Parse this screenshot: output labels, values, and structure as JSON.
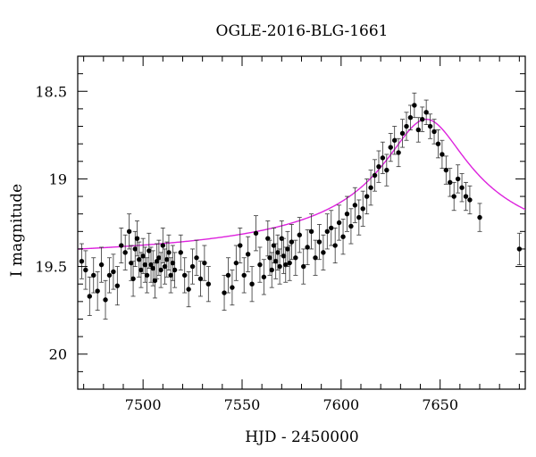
{
  "chart_data": {
    "type": "scatter",
    "title": "OGLE-2016-BLG-1661",
    "xlabel": "HJD - 2450000",
    "ylabel": "I magnitude",
    "xlim": [
      7467,
      7693
    ],
    "ylim": [
      18.3,
      20.2
    ],
    "y_inverted": true,
    "x_ticks": [
      7500,
      7550,
      7600,
      7650
    ],
    "y_ticks": [
      18.5,
      19,
      19.5,
      20
    ],
    "grid": false,
    "legend": "none",
    "colors": {
      "points": "#000000",
      "model": "#dd22dd"
    },
    "series": [
      {
        "kind": "points_with_errorbars",
        "points": [
          [
            7469,
            19.47,
            0.1
          ],
          [
            7471,
            19.52,
            0.11
          ],
          [
            7473,
            19.67,
            0.11
          ],
          [
            7475,
            19.55,
            0.1
          ],
          [
            7477,
            19.64,
            0.11
          ],
          [
            7479,
            19.49,
            0.1
          ],
          [
            7481,
            19.69,
            0.11
          ],
          [
            7483,
            19.55,
            0.1
          ],
          [
            7485,
            19.53,
            0.1
          ],
          [
            7487,
            19.61,
            0.11
          ],
          [
            7489,
            19.38,
            0.1
          ],
          [
            7491,
            19.42,
            0.1
          ],
          [
            7493,
            19.3,
            0.1
          ],
          [
            7494,
            19.48,
            0.1
          ],
          [
            7495,
            19.57,
            0.1
          ],
          [
            7496,
            19.4,
            0.1
          ],
          [
            7497,
            19.34,
            0.1
          ],
          [
            7498,
            19.46,
            0.1
          ],
          [
            7499,
            19.52,
            0.1
          ],
          [
            7500,
            19.44,
            0.1
          ],
          [
            7501,
            19.49,
            0.1
          ],
          [
            7502,
            19.55,
            0.1
          ],
          [
            7503,
            19.41,
            0.1
          ],
          [
            7504,
            19.49,
            0.1
          ],
          [
            7505,
            19.51,
            0.1
          ],
          [
            7506,
            19.58,
            0.1
          ],
          [
            7507,
            19.47,
            0.1
          ],
          [
            7508,
            19.45,
            0.1
          ],
          [
            7509,
            19.52,
            0.1
          ],
          [
            7510,
            19.38,
            0.1
          ],
          [
            7511,
            19.5,
            0.1
          ],
          [
            7512,
            19.46,
            0.1
          ],
          [
            7513,
            19.42,
            0.1
          ],
          [
            7514,
            19.55,
            0.1
          ],
          [
            7515,
            19.48,
            0.1
          ],
          [
            7516,
            19.52,
            0.1
          ],
          [
            7519,
            19.42,
            0.1
          ],
          [
            7521,
            19.55,
            0.1
          ],
          [
            7523,
            19.63,
            0.1
          ],
          [
            7525,
            19.5,
            0.1
          ],
          [
            7527,
            19.45,
            0.1
          ],
          [
            7529,
            19.57,
            0.1
          ],
          [
            7531,
            19.48,
            0.1
          ],
          [
            7533,
            19.6,
            0.1
          ],
          [
            7541,
            19.65,
            0.1
          ],
          [
            7543,
            19.55,
            0.1
          ],
          [
            7545,
            19.62,
            0.1
          ],
          [
            7547,
            19.48,
            0.1
          ],
          [
            7549,
            19.38,
            0.1
          ],
          [
            7551,
            19.55,
            0.1
          ],
          [
            7553,
            19.43,
            0.1
          ],
          [
            7555,
            19.6,
            0.1
          ],
          [
            7557,
            19.31,
            0.1
          ],
          [
            7559,
            19.49,
            0.1
          ],
          [
            7561,
            19.56,
            0.1
          ],
          [
            7563,
            19.34,
            0.1
          ],
          [
            7564,
            19.45,
            0.1
          ],
          [
            7565,
            19.52,
            0.1
          ],
          [
            7566,
            19.38,
            0.1
          ],
          [
            7567,
            19.47,
            0.1
          ],
          [
            7568,
            19.42,
            0.1
          ],
          [
            7569,
            19.5,
            0.1
          ],
          [
            7570,
            19.34,
            0.1
          ],
          [
            7571,
            19.44,
            0.1
          ],
          [
            7572,
            19.49,
            0.1
          ],
          [
            7573,
            19.4,
            0.1
          ],
          [
            7574,
            19.48,
            0.1
          ],
          [
            7575,
            19.36,
            0.1
          ],
          [
            7577,
            19.45,
            0.1
          ],
          [
            7579,
            19.32,
            0.1
          ],
          [
            7581,
            19.5,
            0.1
          ],
          [
            7583,
            19.39,
            0.1
          ],
          [
            7585,
            19.3,
            0.1
          ],
          [
            7587,
            19.45,
            0.1
          ],
          [
            7589,
            19.36,
            0.1
          ],
          [
            7591,
            19.42,
            0.1
          ],
          [
            7593,
            19.3,
            0.1
          ],
          [
            7595,
            19.28,
            0.1
          ],
          [
            7597,
            19.38,
            0.1
          ],
          [
            7599,
            19.25,
            0.1
          ],
          [
            7601,
            19.33,
            0.1
          ],
          [
            7603,
            19.2,
            0.1
          ],
          [
            7605,
            19.27,
            0.1
          ],
          [
            7607,
            19.15,
            0.1
          ],
          [
            7609,
            19.22,
            0.1
          ],
          [
            7611,
            19.17,
            0.1
          ],
          [
            7613,
            19.1,
            0.1
          ],
          [
            7615,
            19.05,
            0.1
          ],
          [
            7617,
            18.98,
            0.09
          ],
          [
            7619,
            18.93,
            0.09
          ],
          [
            7621,
            18.88,
            0.09
          ],
          [
            7623,
            18.95,
            0.09
          ],
          [
            7625,
            18.82,
            0.08
          ],
          [
            7627,
            18.78,
            0.08
          ],
          [
            7629,
            18.85,
            0.08
          ],
          [
            7631,
            18.74,
            0.08
          ],
          [
            7633,
            18.7,
            0.08
          ],
          [
            7635,
            18.65,
            0.07
          ],
          [
            7637,
            18.58,
            0.07
          ],
          [
            7639,
            18.72,
            0.07
          ],
          [
            7641,
            18.66,
            0.07
          ],
          [
            7643,
            18.62,
            0.07
          ],
          [
            7645,
            18.7,
            0.07
          ],
          [
            7647,
            18.73,
            0.07
          ],
          [
            7649,
            18.8,
            0.08
          ],
          [
            7651,
            18.86,
            0.08
          ],
          [
            7653,
            18.95,
            0.08
          ],
          [
            7655,
            19.02,
            0.08
          ],
          [
            7657,
            19.1,
            0.08
          ],
          [
            7659,
            19.0,
            0.08
          ],
          [
            7661,
            19.05,
            0.08
          ],
          [
            7663,
            19.1,
            0.08
          ],
          [
            7665,
            19.12,
            0.08
          ],
          [
            7670,
            19.22,
            0.08
          ],
          [
            7690,
            19.4,
            0.09
          ]
        ]
      },
      {
        "name": "",
        "kind": "model_curve",
        "t0": 7643,
        "baseline": 19.5,
        "peak_brightening": 0.84,
        "tau": 21
      }
    ]
  }
}
